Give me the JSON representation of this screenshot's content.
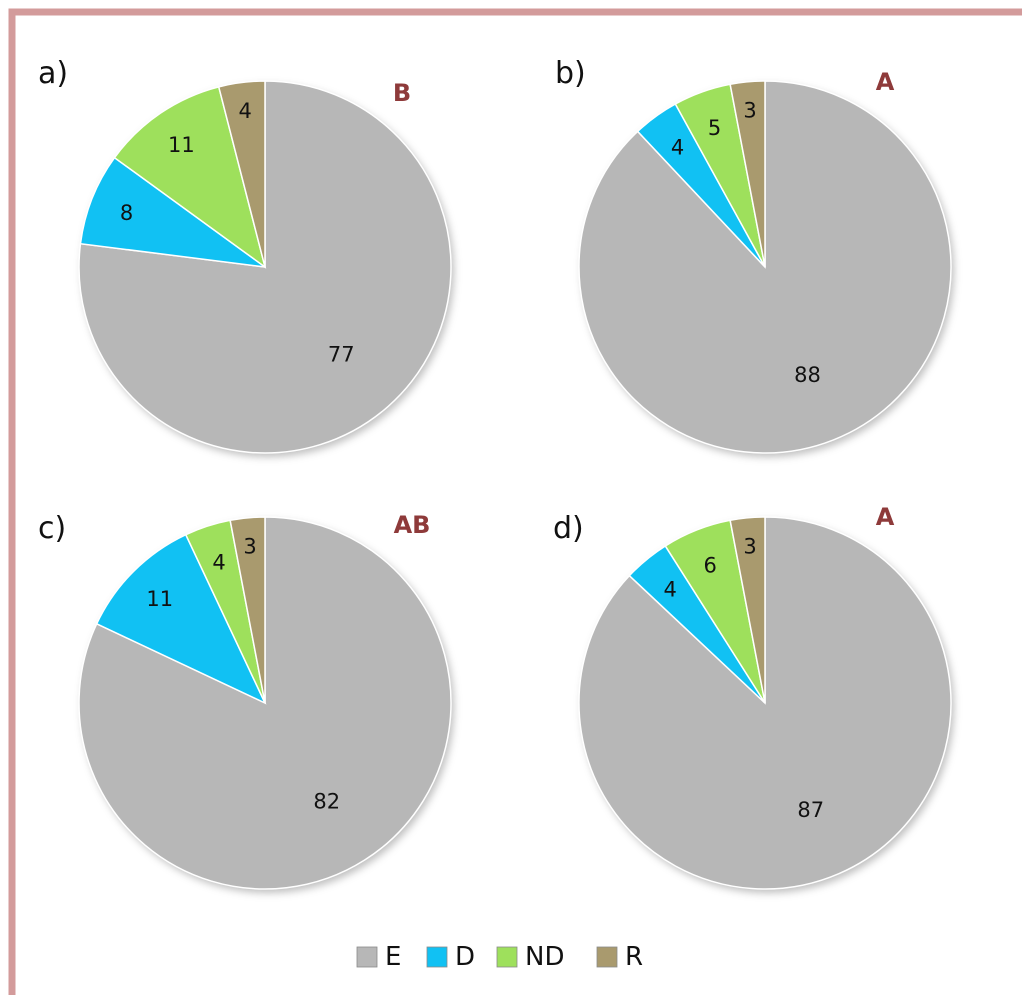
{
  "chart_data": [
    {
      "type": "pie",
      "panel": "a)",
      "group": "B",
      "categories": [
        "E",
        "D",
        "ND",
        "R"
      ],
      "values": [
        77,
        8,
        11,
        4
      ]
    },
    {
      "type": "pie",
      "panel": "b)",
      "group": "A",
      "categories": [
        "E",
        "D",
        "ND",
        "R"
      ],
      "values": [
        88,
        4,
        5,
        3
      ]
    },
    {
      "type": "pie",
      "panel": "c)",
      "group": "AB",
      "categories": [
        "E",
        "D",
        "ND",
        "R"
      ],
      "values": [
        82,
        11,
        4,
        3
      ]
    },
    {
      "type": "pie",
      "panel": "d)",
      "group": "A",
      "categories": [
        "E",
        "D",
        "ND",
        "R"
      ],
      "values": [
        87,
        4,
        6,
        3
      ]
    }
  ],
  "legend": {
    "placement": "bottom-center",
    "items": [
      {
        "label": "E",
        "color": "#b7b7b7"
      },
      {
        "label": "D",
        "color": "#11c1f3"
      },
      {
        "label": "ND",
        "color": "#9ee05c"
      },
      {
        "label": "R",
        "color": "#a99a6e"
      }
    ]
  },
  "colors": {
    "E": "#b7b7b7",
    "D": "#11c1f3",
    "ND": "#9ee05c",
    "R": "#a99a6e",
    "frame": "#d39b9b",
    "group_label": "#8e3a3a"
  }
}
